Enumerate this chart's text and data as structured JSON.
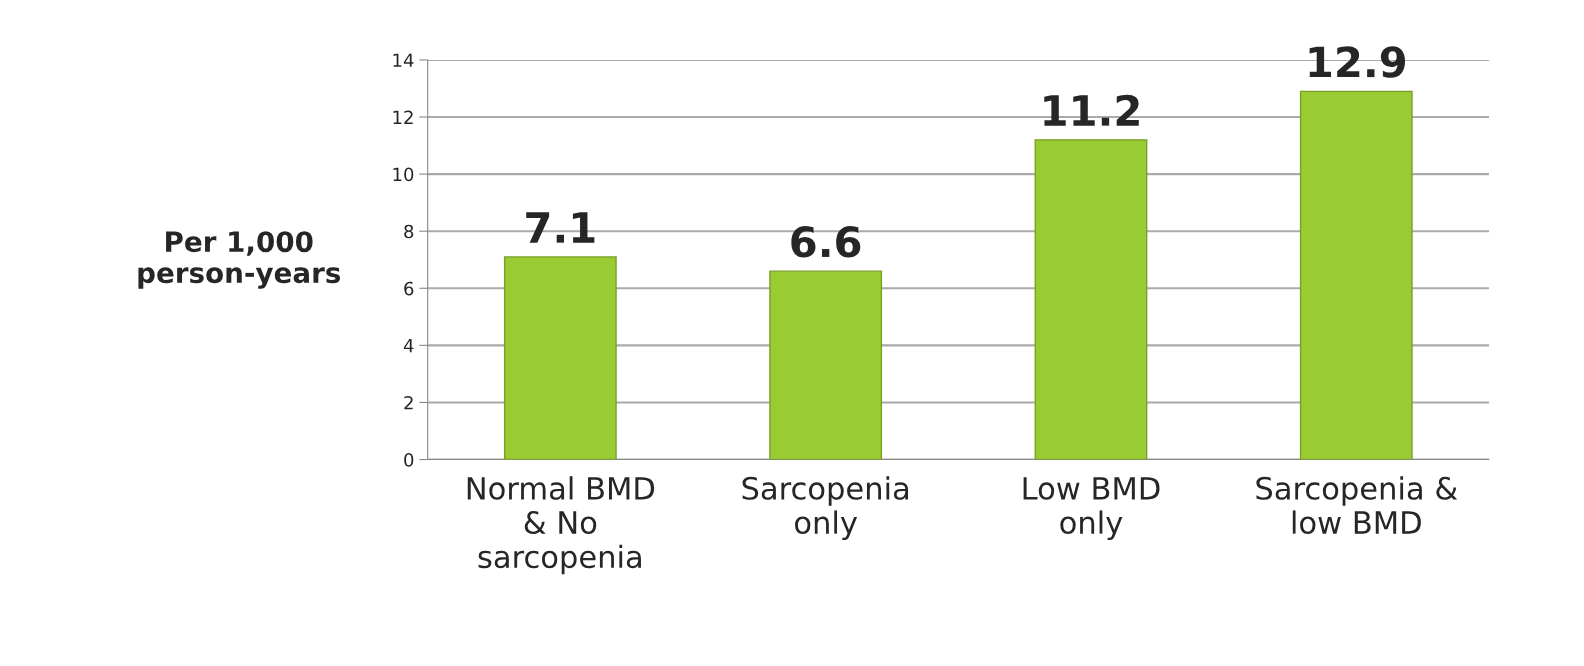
{
  "chart_data": {
    "type": "bar",
    "categories": [
      "Normal BMD\n& No\nsarcopenia",
      "Sarcopenia\nonly",
      "Low BMD\nonly",
      "Sarcopenia &\nlow BMD"
    ],
    "values": [
      7.1,
      6.6,
      11.2,
      12.9
    ],
    "color": "#99cc33",
    "ylabel": "Per 1,000\nperson-years",
    "ylim": [
      0,
      14
    ],
    "yticks": [
      0,
      2,
      4,
      6,
      8,
      10,
      12,
      14
    ],
    "grid": "y",
    "data_labels": true,
    "legend": false
  }
}
